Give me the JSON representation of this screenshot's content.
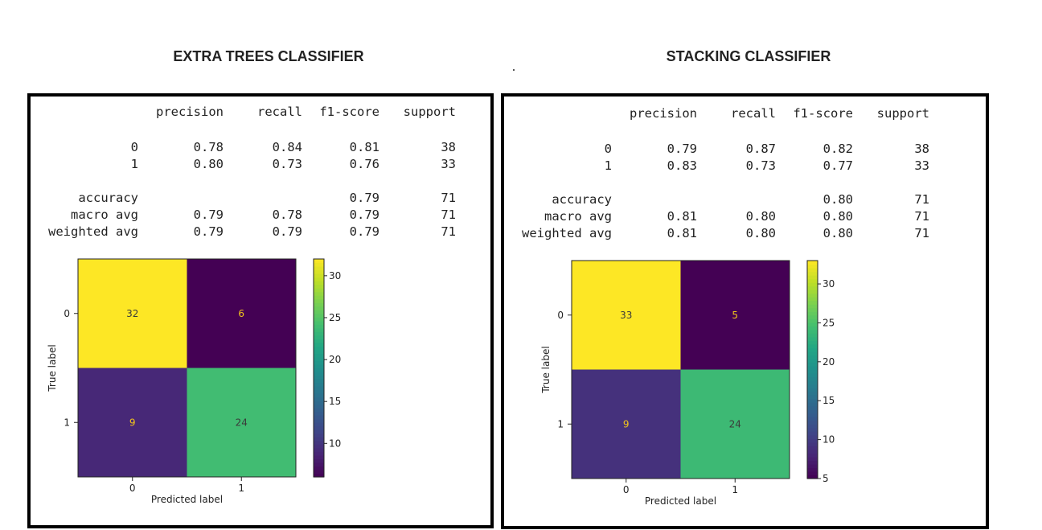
{
  "panels": [
    {
      "title": "EXTRA TREES CLASSIFIER",
      "report": {
        "headers": [
          "precision",
          "recall",
          "f1-score",
          "support"
        ],
        "rows": [
          {
            "label": "0",
            "values": [
              "0.78",
              "0.84",
              "0.81",
              "38"
            ]
          },
          {
            "label": "1",
            "values": [
              "0.80",
              "0.73",
              "0.76",
              "33"
            ]
          },
          {
            "label": "accuracy",
            "values": [
              "",
              "",
              "0.79",
              "71"
            ]
          },
          {
            "label": "macro avg",
            "values": [
              "0.79",
              "0.78",
              "0.79",
              "71"
            ]
          },
          {
            "label": "weighted avg",
            "values": [
              "0.79",
              "0.79",
              "0.79",
              "71"
            ]
          }
        ]
      }
    },
    {
      "title": "STACKING CLASSIFIER",
      "report": {
        "headers": [
          "precision",
          "recall",
          "f1-score",
          "support"
        ],
        "rows": [
          {
            "label": "0",
            "values": [
              "0.79",
              "0.87",
              "0.82",
              "38"
            ]
          },
          {
            "label": "1",
            "values": [
              "0.83",
              "0.73",
              "0.77",
              "33"
            ]
          },
          {
            "label": "accuracy",
            "values": [
              "",
              "",
              "0.80",
              "71"
            ]
          },
          {
            "label": "macro avg",
            "values": [
              "0.81",
              "0.80",
              "0.80",
              "71"
            ]
          },
          {
            "label": "weighted avg",
            "values": [
              "0.81",
              "0.80",
              "0.80",
              "71"
            ]
          }
        ]
      }
    }
  ],
  "chart_data": [
    {
      "type": "heatmap",
      "title": "",
      "xlabel": "Predicted label",
      "ylabel": "True label",
      "x_categories": [
        "0",
        "1"
      ],
      "y_categories": [
        "0",
        "1"
      ],
      "values": [
        [
          32,
          6
        ],
        [
          9,
          24
        ]
      ],
      "colormap": "viridis",
      "colorbar_range": [
        6,
        32
      ],
      "colorbar_ticks": [
        10,
        15,
        20,
        25,
        30
      ]
    },
    {
      "type": "heatmap",
      "title": "",
      "xlabel": "Predicted label",
      "ylabel": "True label",
      "x_categories": [
        "0",
        "1"
      ],
      "y_categories": [
        "0",
        "1"
      ],
      "values": [
        [
          33,
          5
        ],
        [
          9,
          24
        ]
      ],
      "colormap": "viridis",
      "colorbar_range": [
        5,
        33
      ],
      "colorbar_ticks": [
        5,
        10,
        15,
        20,
        25,
        30
      ]
    }
  ]
}
